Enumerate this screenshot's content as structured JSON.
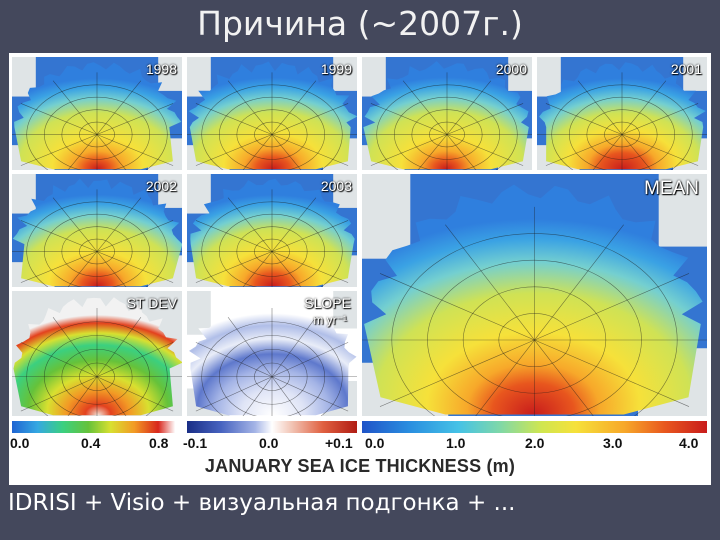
{
  "slide": {
    "title": "Причина (~2007г.)",
    "footer": "IDRISI + Visio + визуальная подгонка + ..."
  },
  "figure": {
    "panels": [
      {
        "id": "1998",
        "label": "1998",
        "type": "thickness"
      },
      {
        "id": "1999",
        "label": "1999",
        "type": "thickness"
      },
      {
        "id": "2000",
        "label": "2000",
        "type": "thickness"
      },
      {
        "id": "2001",
        "label": "2001",
        "type": "thickness"
      },
      {
        "id": "2002",
        "label": "2002",
        "type": "thickness"
      },
      {
        "id": "2003",
        "label": "2003",
        "type": "thickness"
      },
      {
        "id": "stdev",
        "label": "ST DEV",
        "type": "stdev"
      },
      {
        "id": "slope",
        "label": "SLOPE",
        "sublabel": "m yr⁻¹",
        "type": "slope"
      },
      {
        "id": "mean",
        "label": "MEAN",
        "type": "thickness"
      }
    ],
    "scales": {
      "stdev": [
        "0.0",
        "0.4",
        "0.8"
      ],
      "slope": [
        "-0.1",
        "0.0",
        "+0.1"
      ],
      "thickness": [
        "0.0",
        "1.0",
        "2.0",
        "3.0",
        "4.0"
      ]
    },
    "caption": "JANUARY SEA ICE THICKNESS (m)"
  },
  "colors": {
    "background": "#44485c",
    "ocean": "#2a6fd0",
    "land": "#dfe4e6",
    "thick_ice": "#d8261c",
    "mid_ice": "#f6e13a"
  }
}
